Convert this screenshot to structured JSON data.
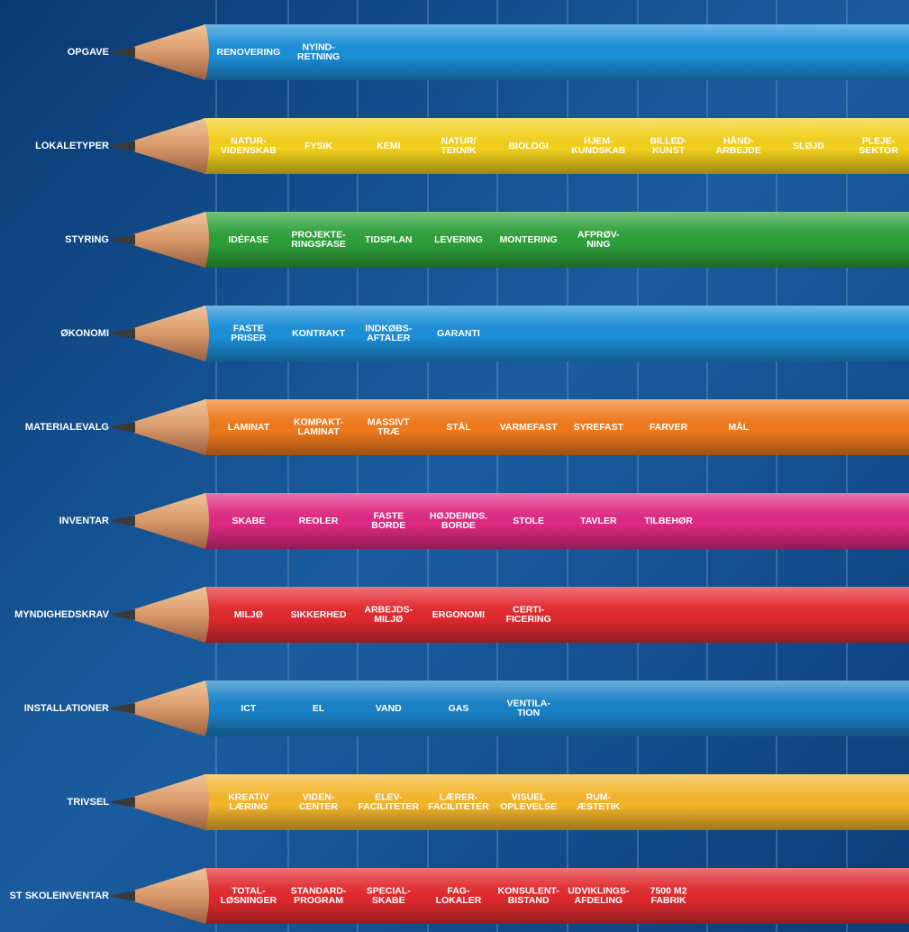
{
  "rows": [
    {
      "label": "OPGAVE",
      "cells": [
        [
          "RENOVERING"
        ],
        [
          "NYIND-",
          "RETNING"
        ]
      ]
    },
    {
      "label": "LOKALETYPER",
      "cells": [
        [
          "NATUR-",
          "VIDENSKAB"
        ],
        [
          "FYSIK"
        ],
        [
          "KEMI"
        ],
        [
          "NATUR/",
          "TEKNIK"
        ],
        [
          "BIOLOGI"
        ],
        [
          "HJEM-",
          "KUNDSKAB"
        ],
        [
          "BILLED-",
          "KUNST"
        ],
        [
          "HÅND-",
          "ARBEJDE"
        ],
        [
          "SLØJD"
        ],
        [
          "PLEJE-",
          "SEKTOR"
        ]
      ]
    },
    {
      "label": "STYRING",
      "cells": [
        [
          "IDÉFASE"
        ],
        [
          "PROJEKTE-",
          "RINGSFASE"
        ],
        [
          "TIDSPLAN"
        ],
        [
          "LEVERING"
        ],
        [
          "MONTERING"
        ],
        [
          "AFPRØV-",
          "NING"
        ]
      ]
    },
    {
      "label": "ØKONOMI",
      "cells": [
        [
          "FASTE",
          "PRISER"
        ],
        [
          "KONTRAKT"
        ],
        [
          "INDKØBS-",
          "AFTALER"
        ],
        [
          "GARANTI"
        ]
      ]
    },
    {
      "label": "MATERIALEVALG",
      "cells": [
        [
          "LAMINAT"
        ],
        [
          "KOMPAKT-",
          "LAMINAT"
        ],
        [
          "MASSIVT",
          "TRÆ"
        ],
        [
          "STÅL"
        ],
        [
          "VARMEFAST"
        ],
        [
          "SYREFAST"
        ],
        [
          "FARVER"
        ],
        [
          "MÅL"
        ]
      ]
    },
    {
      "label": "INVENTAR",
      "cells": [
        [
          "SKABE"
        ],
        [
          "REOLER"
        ],
        [
          "FASTE",
          "BORDE"
        ],
        [
          "HØJDEINDS.",
          "BORDE"
        ],
        [
          "STOLE"
        ],
        [
          "TAVLER"
        ],
        [
          "TILBEHØR"
        ]
      ]
    },
    {
      "label": "MYNDIGHEDSKRAV",
      "cells": [
        [
          "MILJØ"
        ],
        [
          "SIKKERHED"
        ],
        [
          "ARBEJDS-",
          "MILJØ"
        ],
        [
          "ERGONOMI"
        ],
        [
          "CERTI-",
          "FICERING"
        ]
      ]
    },
    {
      "label": "INSTALLATIONER",
      "cells": [
        [
          "ICT"
        ],
        [
          "EL"
        ],
        [
          "VAND"
        ],
        [
          "GAS"
        ],
        [
          "VENTILA-",
          "TION"
        ]
      ]
    },
    {
      "label": "TRIVSEL",
      "cells": [
        [
          "KREATIV",
          "LÆRING"
        ],
        [
          "VIDEN-",
          "CENTER"
        ],
        [
          "ELEV-",
          "FACILITETER"
        ],
        [
          "LÆRER-",
          "FACILITETER"
        ],
        [
          "VISUEL",
          "OPLEVELSE"
        ],
        [
          "RUM-",
          "ÆSTETIK"
        ]
      ]
    },
    {
      "label": "ST SKOLEINVENTAR",
      "cells": [
        [
          "TOTAL-",
          "LØSNINGER"
        ],
        [
          "STANDARD-",
          "PROGRAM"
        ],
        [
          "SPECIAL-",
          "SKABE"
        ],
        [
          "FAG-",
          "LOKALER"
        ],
        [
          "KONSULENT-",
          "BISTAND"
        ],
        [
          "UDVIKLINGS-",
          "AFDELING"
        ],
        [
          "7500 M2",
          "FABRIK"
        ]
      ]
    }
  ]
}
